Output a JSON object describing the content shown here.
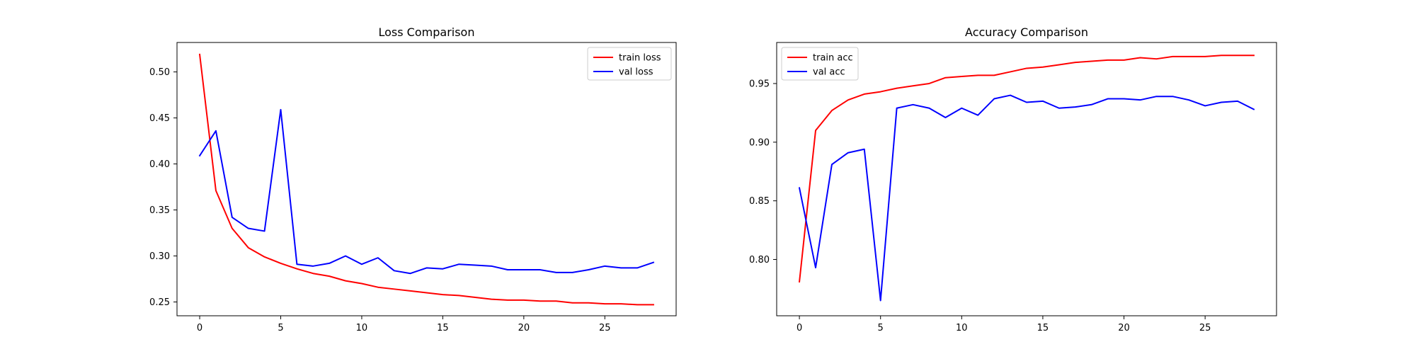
{
  "chart_data": [
    {
      "type": "line",
      "title": "Loss Comparison",
      "xlabel": "",
      "ylabel": "",
      "x": [
        0,
        1,
        2,
        3,
        4,
        5,
        6,
        7,
        8,
        9,
        10,
        11,
        12,
        13,
        14,
        15,
        16,
        17,
        18,
        19,
        20,
        21,
        22,
        23,
        24,
        25,
        26,
        27,
        28
      ],
      "xlim": [
        -1.4,
        29.4
      ],
      "ylim": [
        0.235,
        0.532
      ],
      "xticks": [
        0,
        5,
        10,
        15,
        20,
        25
      ],
      "yticks": [
        0.25,
        0.3,
        0.35,
        0.4,
        0.45,
        0.5
      ],
      "xtick_labels": [
        "0",
        "5",
        "10",
        "15",
        "20",
        "25"
      ],
      "ytick_labels": [
        "0.25",
        "0.30",
        "0.35",
        "0.40",
        "0.45",
        "0.50"
      ],
      "grid": false,
      "legend_position": "top-right",
      "series": [
        {
          "name": "train loss",
          "color": "#ff0000",
          "values": [
            0.519,
            0.371,
            0.33,
            0.309,
            0.299,
            0.292,
            0.286,
            0.281,
            0.278,
            0.273,
            0.27,
            0.266,
            0.264,
            0.262,
            0.26,
            0.258,
            0.257,
            0.255,
            0.253,
            0.252,
            0.252,
            0.251,
            0.251,
            0.249,
            0.249,
            0.248,
            0.248,
            0.247,
            0.247
          ]
        },
        {
          "name": "val loss",
          "color": "#0000ff",
          "values": [
            0.409,
            0.436,
            0.342,
            0.33,
            0.327,
            0.459,
            0.291,
            0.289,
            0.292,
            0.3,
            0.291,
            0.298,
            0.284,
            0.281,
            0.287,
            0.286,
            0.291,
            0.29,
            0.289,
            0.285,
            0.285,
            0.285,
            0.282,
            0.282,
            0.285,
            0.289,
            0.287,
            0.287,
            0.293
          ]
        }
      ]
    },
    {
      "type": "line",
      "title": "Accuracy Comparison",
      "xlabel": "",
      "ylabel": "",
      "x": [
        0,
        1,
        2,
        3,
        4,
        5,
        6,
        7,
        8,
        9,
        10,
        11,
        12,
        13,
        14,
        15,
        16,
        17,
        18,
        19,
        20,
        21,
        22,
        23,
        24,
        25,
        26,
        27,
        28
      ],
      "xlim": [
        -1.4,
        29.4
      ],
      "ylim": [
        0.752,
        0.985
      ],
      "xticks": [
        0,
        5,
        10,
        15,
        20,
        25
      ],
      "yticks": [
        0.8,
        0.85,
        0.9,
        0.95
      ],
      "xtick_labels": [
        "0",
        "5",
        "10",
        "15",
        "20",
        "25"
      ],
      "ytick_labels": [
        "0.80",
        "0.85",
        "0.90",
        "0.95"
      ],
      "grid": false,
      "legend_position": "top-left",
      "series": [
        {
          "name": "train acc",
          "color": "#ff0000",
          "values": [
            0.781,
            0.91,
            0.927,
            0.936,
            0.941,
            0.943,
            0.946,
            0.948,
            0.95,
            0.955,
            0.956,
            0.957,
            0.957,
            0.96,
            0.963,
            0.964,
            0.966,
            0.968,
            0.969,
            0.97,
            0.97,
            0.972,
            0.971,
            0.973,
            0.973,
            0.973,
            0.974,
            0.974,
            0.974
          ]
        },
        {
          "name": "val acc",
          "color": "#0000ff",
          "values": [
            0.861,
            0.793,
            0.881,
            0.891,
            0.894,
            0.765,
            0.929,
            0.932,
            0.929,
            0.921,
            0.929,
            0.923,
            0.937,
            0.94,
            0.934,
            0.935,
            0.929,
            0.93,
            0.932,
            0.937,
            0.937,
            0.936,
            0.939,
            0.939,
            0.936,
            0.931,
            0.934,
            0.935,
            0.928
          ]
        }
      ]
    }
  ]
}
